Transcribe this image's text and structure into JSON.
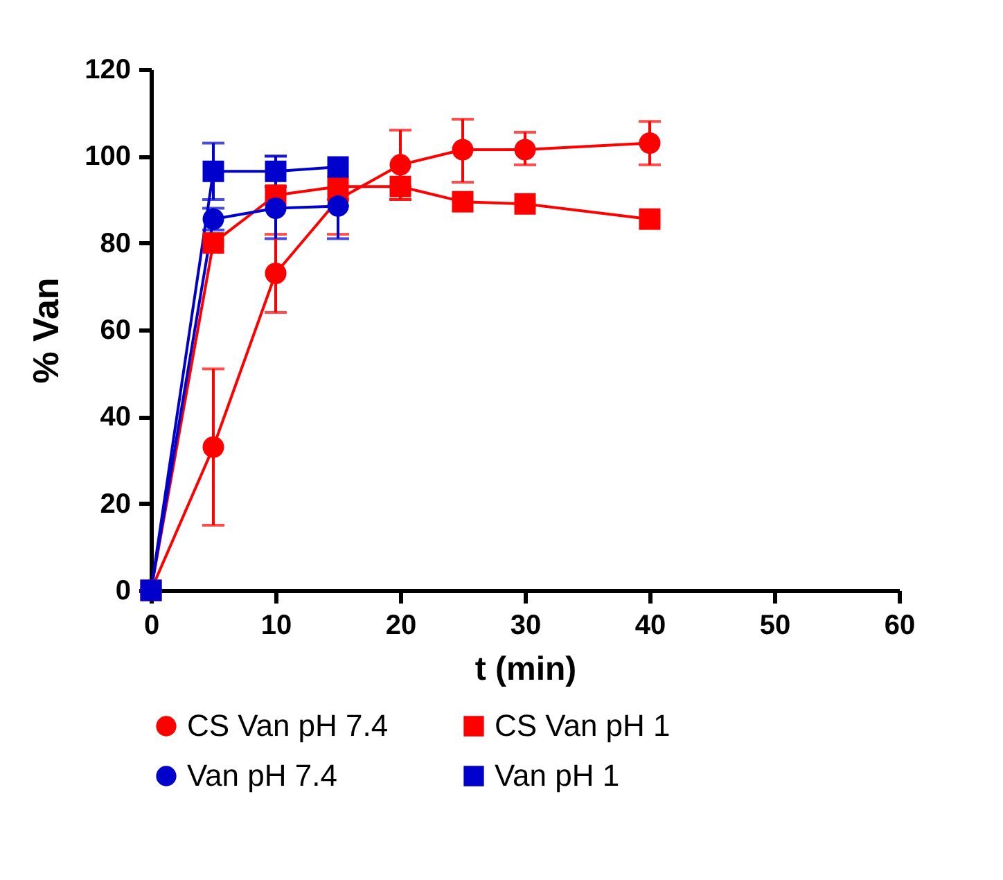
{
  "chart_data": {
    "type": "line",
    "xlabel": "t (min)",
    "ylabel": "% Van",
    "x": [
      0,
      5,
      10,
      15,
      20,
      25,
      30,
      40
    ],
    "series": [
      {
        "name": "CS Van pH 7.4",
        "color": "#ff0000",
        "marker": "circle",
        "values": [
          0,
          33,
          73,
          90,
          98,
          101.5,
          101.5,
          103
        ],
        "errors": [
          null,
          [
            15,
            51
          ],
          [
            64,
            82
          ],
          [
            82,
            90
          ],
          [
            90,
            106
          ],
          [
            94,
            108.5
          ],
          [
            98,
            105.5
          ],
          [
            98,
            108
          ]
        ]
      },
      {
        "name": "CS Van pH 1",
        "color": "#ff0000",
        "marker": "square",
        "values": [
          0,
          80,
          91,
          93,
          93,
          89.5,
          89,
          85.5
        ],
        "errors": [
          null,
          null,
          null,
          null,
          [
            90,
            93
          ],
          null,
          null,
          null
        ]
      },
      {
        "name": "Van pH 7.4",
        "color": "#0000cc",
        "marker": "circle",
        "x": [
          0,
          5,
          10,
          15
        ],
        "values": [
          0,
          85.5,
          88,
          88.5
        ],
        "errors": [
          null,
          [
            83,
            88
          ],
          [
            81,
            100
          ],
          [
            81,
            88.5
          ]
        ]
      },
      {
        "name": "Van pH 1",
        "color": "#0000cc",
        "marker": "square",
        "x": [
          0,
          5,
          10,
          15
        ],
        "values": [
          0,
          96.5,
          96.5,
          97.5
        ],
        "errors": [
          null,
          [
            90,
            103
          ],
          [
            93,
            100
          ],
          null
        ]
      }
    ],
    "xlim": [
      0,
      60
    ],
    "xticks": [
      0,
      10,
      20,
      30,
      40,
      50,
      60
    ],
    "ylim": [
      0,
      120
    ],
    "yticks": [
      0,
      20,
      40,
      60,
      80,
      100,
      120
    ],
    "grid": false,
    "legend": "bottom",
    "line_style": "solid"
  }
}
